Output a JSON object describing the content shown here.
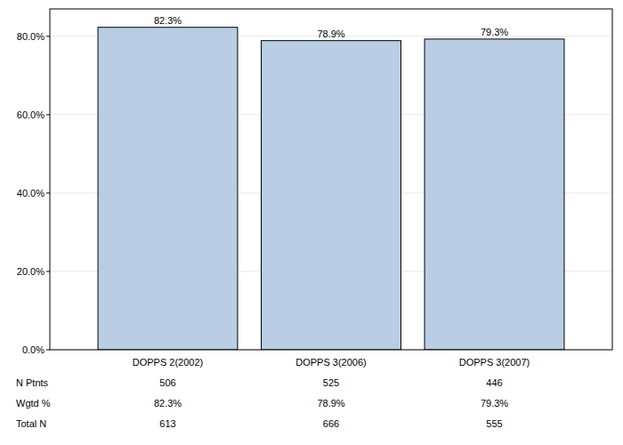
{
  "chart_data": {
    "type": "bar",
    "categories": [
      "DOPPS 2(2002)",
      "DOPPS 3(2006)",
      "DOPPS 3(2007)"
    ],
    "values": [
      82.3,
      78.9,
      79.3
    ],
    "value_labels": [
      "82.3%",
      "78.9%",
      "79.3%"
    ],
    "color": "#b9cde5",
    "ylim": [
      0,
      87
    ],
    "yticks": [
      {
        "value": 0,
        "label": "0.0%"
      },
      {
        "value": 20,
        "label": "20.0%"
      },
      {
        "value": 40,
        "label": "40.0%"
      },
      {
        "value": 60,
        "label": "60.0%"
      },
      {
        "value": 80,
        "label": "80.0%"
      }
    ],
    "grid": true,
    "data_labels": true,
    "table": {
      "rows": [
        {
          "label": "N Ptnts",
          "values": [
            506,
            525,
            446
          ]
        },
        {
          "label": "Wgtd %",
          "values": [
            "82.3%",
            "78.9%",
            "79.3%"
          ]
        },
        {
          "label": "Total N",
          "values": [
            613,
            666,
            555
          ]
        }
      ]
    }
  }
}
